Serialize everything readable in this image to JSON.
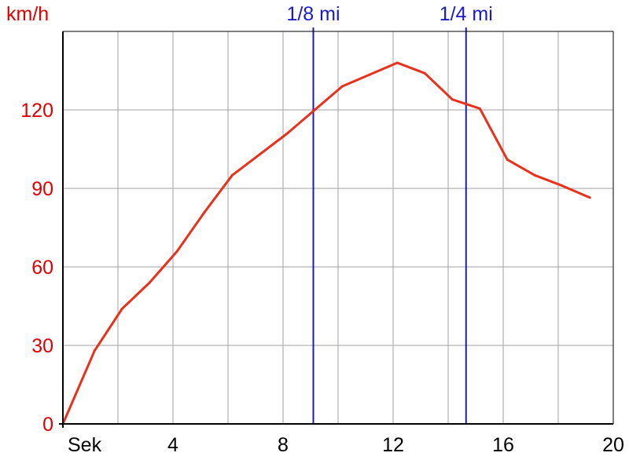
{
  "colors": {
    "series": "#e8301a",
    "y_axis_text": "#e00000",
    "marker": "#1a1acc",
    "grid": "#a0a0a0",
    "axis": "#000000",
    "background": "#ffffff"
  },
  "chart_data": {
    "type": "line",
    "title": "",
    "xlabel": "Sek",
    "ylabel": "km/h",
    "xlim": [
      0,
      20
    ],
    "ylim": [
      0,
      150
    ],
    "x_ticks": [
      {
        "value": 0,
        "label": "Sek"
      },
      {
        "value": 4,
        "label": "4"
      },
      {
        "value": 8,
        "label": "8"
      },
      {
        "value": 12,
        "label": "12"
      },
      {
        "value": 16,
        "label": "16"
      },
      {
        "value": 20,
        "label": "20"
      }
    ],
    "y_ticks": [
      {
        "value": 0,
        "label": "0"
      },
      {
        "value": 30,
        "label": "30"
      },
      {
        "value": 60,
        "label": "60"
      },
      {
        "value": 90,
        "label": "90"
      },
      {
        "value": 120,
        "label": "120"
      }
    ],
    "grid": true,
    "x_grid_step": 2,
    "y_grid_step": 30,
    "markers": [
      {
        "label": "1/8 mi",
        "x": 9.1
      },
      {
        "label": "1/4 mi",
        "x": 14.65
      }
    ],
    "series": [
      {
        "x": [
          0,
          1.15,
          2.15,
          3.15,
          4.15,
          5.15,
          6.15,
          7.15,
          8.15,
          9.15,
          10.15,
          11.15,
          12.15,
          13.15,
          14.15,
          15.15,
          16.15,
          17.15,
          18.15,
          19.15
        ],
        "values": [
          0,
          28,
          44,
          54,
          66,
          81,
          95,
          103,
          111,
          120,
          129,
          133.5,
          138,
          134,
          124,
          120.5,
          101,
          95,
          91,
          86.5
        ]
      }
    ]
  }
}
